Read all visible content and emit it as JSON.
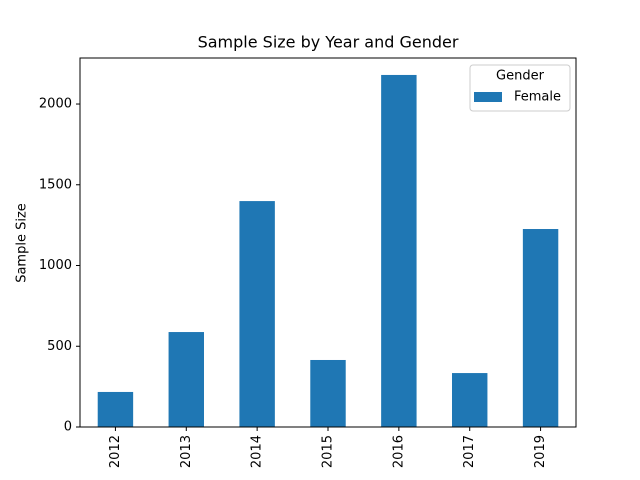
{
  "chart_data": {
    "type": "bar",
    "title": "Sample Size by Year and Gender",
    "y_label": "Sample Size",
    "categories": [
      "2012",
      "2013",
      "2014",
      "2015",
      "2016",
      "2017",
      "2019"
    ],
    "series": [
      {
        "name": "Female",
        "color": "#1f77b4",
        "values": [
          217,
          588,
          1399,
          415,
          2180,
          334,
          1226
        ]
      }
    ],
    "legend_title": "Gender",
    "legend_position": "upper right",
    "ylim": [
      0,
      2285
    ],
    "yticks": [
      0,
      500,
      1000,
      1500,
      2000
    ],
    "grid": false
  }
}
